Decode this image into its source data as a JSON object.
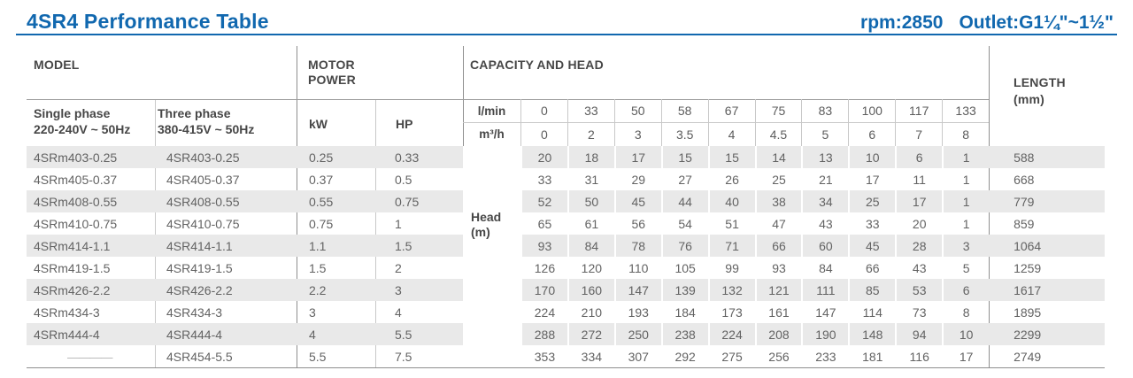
{
  "page": {
    "title": "4SR4 Performance Table",
    "specs_rpm": "rpm:2850",
    "specs_outlet": "Outlet:G1¼\"~1½\"",
    "accent_color": "#1168af",
    "stripe_color": "#e9e9e9"
  },
  "table": {
    "group_headers": {
      "model": "MODEL",
      "motor_power_line1": "MOTOR",
      "motor_power_line2": "POWER",
      "capacity": "CAPACITY AND HEAD",
      "length_line1": "LENGTH",
      "length_line2": "(mm)"
    },
    "sub_headers": {
      "single_phase_line1": "Single phase",
      "single_phase_line2": "220-240V ~ 50Hz",
      "three_phase_line1": "Three phase",
      "three_phase_line2": "380-415V ~ 50Hz",
      "kw": "kW",
      "hp": "HP",
      "flow_lmin_label": "l/min",
      "flow_m3h_label": "m³/h"
    },
    "flow_lmin": [
      "0",
      "33",
      "50",
      "58",
      "67",
      "75",
      "83",
      "100",
      "117",
      "133"
    ],
    "flow_m3h": [
      "0",
      "2",
      "3",
      "3.5",
      "4",
      "4.5",
      "5",
      "6",
      "7",
      "8"
    ],
    "head_label_line1": "Head",
    "head_label_line2": "(m)",
    "rows": [
      {
        "single": "4SRm403-0.25",
        "three": "4SR403-0.25",
        "kw": "0.25",
        "hp": "0.33",
        "heads": [
          "20",
          "18",
          "17",
          "15",
          "15",
          "14",
          "13",
          "10",
          "6",
          "1"
        ],
        "length": "588"
      },
      {
        "single": "4SRm405-0.37",
        "three": "4SR405-0.37",
        "kw": "0.37",
        "hp": "0.5",
        "heads": [
          "33",
          "31",
          "29",
          "27",
          "26",
          "25",
          "21",
          "17",
          "11",
          "1"
        ],
        "length": "668"
      },
      {
        "single": "4SRm408-0.55",
        "three": "4SR408-0.55",
        "kw": "0.55",
        "hp": "0.75",
        "heads": [
          "52",
          "50",
          "45",
          "44",
          "40",
          "38",
          "34",
          "25",
          "17",
          "1"
        ],
        "length": "779"
      },
      {
        "single": "4SRm410-0.75",
        "three": "4SR410-0.75",
        "kw": "0.75",
        "hp": "1",
        "heads": [
          "65",
          "61",
          "56",
          "54",
          "51",
          "47",
          "43",
          "33",
          "20",
          "1"
        ],
        "length": "859"
      },
      {
        "single": "4SRm414-1.1",
        "three": "4SR414-1.1",
        "kw": "1.1",
        "hp": "1.5",
        "heads": [
          "93",
          "84",
          "78",
          "76",
          "71",
          "66",
          "60",
          "45",
          "28",
          "3"
        ],
        "length": "1064"
      },
      {
        "single": "4SRm419-1.5",
        "three": "4SR419-1.5",
        "kw": "1.5",
        "hp": "2",
        "heads": [
          "126",
          "120",
          "110",
          "105",
          "99",
          "93",
          "84",
          "66",
          "43",
          "5"
        ],
        "length": "1259"
      },
      {
        "single": "4SRm426-2.2",
        "three": "4SR426-2.2",
        "kw": "2.2",
        "hp": "3",
        "heads": [
          "170",
          "160",
          "147",
          "139",
          "132",
          "121",
          "111",
          "85",
          "53",
          "6"
        ],
        "length": "1617"
      },
      {
        "single": "4SRm434-3",
        "three": "4SR434-3",
        "kw": "3",
        "hp": "4",
        "heads": [
          "224",
          "210",
          "193",
          "184",
          "173",
          "161",
          "147",
          "114",
          "73",
          "8"
        ],
        "length": "1895"
      },
      {
        "single": "4SRm444-4",
        "three": "4SR444-4",
        "kw": "4",
        "hp": "5.5",
        "heads": [
          "288",
          "272",
          "250",
          "238",
          "224",
          "208",
          "190",
          "148",
          "94",
          "10"
        ],
        "length": "2299"
      },
      {
        "single": "————",
        "three": "4SR454-5.5",
        "kw": "5.5",
        "hp": "7.5",
        "heads": [
          "353",
          "334",
          "307",
          "292",
          "275",
          "256",
          "233",
          "181",
          "116",
          "17"
        ],
        "length": "2749"
      }
    ]
  }
}
